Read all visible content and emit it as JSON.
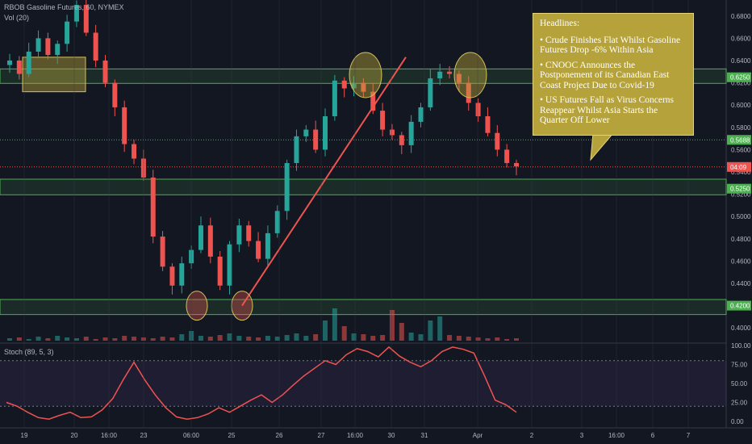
{
  "header": {
    "symbol_line": "RBOB Gasoline Futures, 60, NYMEX",
    "volume_label": "Vol (20)",
    "stoch_label": "Stoch (89, 5, 3)",
    "collapse_icon": "chevron-up-icon"
  },
  "note": {
    "title": "Headlines:",
    "items": [
      "• Crude Finishes Flat Whilst Gasoline Futures Drop -6% Within Asia",
      "• CNOOC Announces the Postponement of its Canadian East Coast Project Due to Covid-19",
      "• US Futures Fall as Virus Concerns Reappear Whilst Asia Starts the Quarter Off Lower"
    ]
  },
  "chart_data": [
    {
      "type": "candlestick",
      "title": "RBOB Gasoline Futures, 60, NYMEX",
      "ylim": [
        0.39,
        0.69
      ],
      "price_axis_ticks": [
        "0.6800",
        "0.6600",
        "0.6400",
        "0.6200",
        "0.6000",
        "0.5800",
        "0.5600",
        "0.5400",
        "0.5200",
        "0.5000",
        "0.4800",
        "0.4600",
        "0.4400",
        "0.4200",
        "0.4000"
      ],
      "price_badges": [
        {
          "label": "0.6250",
          "value": 0.625,
          "color": "#4caf50"
        },
        {
          "label": "0.5688",
          "value": 0.5688,
          "color": "#4caf50"
        },
        {
          "label": "04:09",
          "value": 0.5445,
          "color": "#ef5350"
        },
        {
          "label": "0.5250",
          "value": 0.525,
          "color": "#4caf50"
        },
        {
          "label": "0.4200",
          "value": 0.42,
          "color": "#4caf50"
        }
      ],
      "x_ticks": [
        "19",
        "20",
        "16:00",
        "23",
        "06:00",
        "25",
        "26",
        "27",
        "16:00",
        "30",
        "31",
        "Apr",
        "2",
        "3",
        "16:00",
        "6",
        "7"
      ],
      "resistance_zones": [
        [
          0.6195,
          0.6325
        ],
        [
          0.5195,
          0.5335
        ],
        [
          0.412,
          0.4255
        ]
      ],
      "close_path": [
        0.64,
        0.628,
        0.648,
        0.66,
        0.645,
        0.655,
        0.675,
        0.69,
        0.665,
        0.64,
        0.62,
        0.598,
        0.565,
        0.552,
        0.535,
        0.482,
        0.455,
        0.438,
        0.458,
        0.47,
        0.492,
        0.464,
        0.438,
        0.475,
        0.492,
        0.478,
        0.462,
        0.485,
        0.505,
        0.548,
        0.572,
        0.578,
        0.56,
        0.59,
        0.622,
        0.615,
        0.62,
        0.612,
        0.595,
        0.578,
        0.573,
        0.564,
        0.585,
        0.598,
        0.624,
        0.63,
        0.628,
        0.62,
        0.602,
        0.59,
        0.575,
        0.56,
        0.548,
        0.545
      ],
      "volume_ylim": [
        0,
        100
      ],
      "volume": [
        3,
        4,
        2,
        5,
        3,
        6,
        4,
        3,
        5,
        2,
        4,
        3,
        6,
        5,
        4,
        3,
        5,
        4,
        8,
        12,
        6,
        5,
        7,
        9,
        6,
        5,
        4,
        6,
        5,
        7,
        9,
        6,
        8,
        25,
        40,
        18,
        9,
        8,
        6,
        7,
        38,
        22,
        10,
        8,
        25,
        30,
        7,
        6,
        5,
        4,
        3,
        4,
        2,
        3
      ],
      "annotations": [
        "trendline from 0.42 low to 0.64",
        "circles at 0.42 lows",
        "circles at 0.625 highs",
        "box 0.612–0.643 on day 19"
      ]
    },
    {
      "type": "line",
      "title": "Stoch (89, 5, 3)",
      "ylim": [
        0,
        100
      ],
      "y_ticks": [
        "100.00",
        "75.00",
        "50.00",
        "25.00",
        "0.00"
      ],
      "x": [
        0,
        1,
        2,
        3,
        4,
        5,
        6,
        7,
        8,
        9,
        10,
        11,
        12,
        13,
        14,
        15,
        16,
        17,
        18,
        19,
        20,
        21,
        22,
        23,
        24,
        25,
        26,
        27,
        28,
        29,
        30,
        31,
        32,
        33,
        34,
        35,
        36,
        37,
        38,
        39,
        40,
        41,
        42,
        43,
        44,
        45,
        46,
        47,
        48
      ],
      "values": [
        25,
        20,
        12,
        5,
        3,
        8,
        12,
        5,
        6,
        15,
        30,
        55,
        78,
        55,
        35,
        18,
        6,
        3,
        5,
        10,
        18,
        12,
        20,
        28,
        35,
        25,
        35,
        48,
        60,
        70,
        80,
        75,
        88,
        96,
        92,
        85,
        98,
        86,
        78,
        72,
        80,
        92,
        98,
        95,
        90,
        60,
        28,
        22,
        12
      ]
    }
  ]
}
